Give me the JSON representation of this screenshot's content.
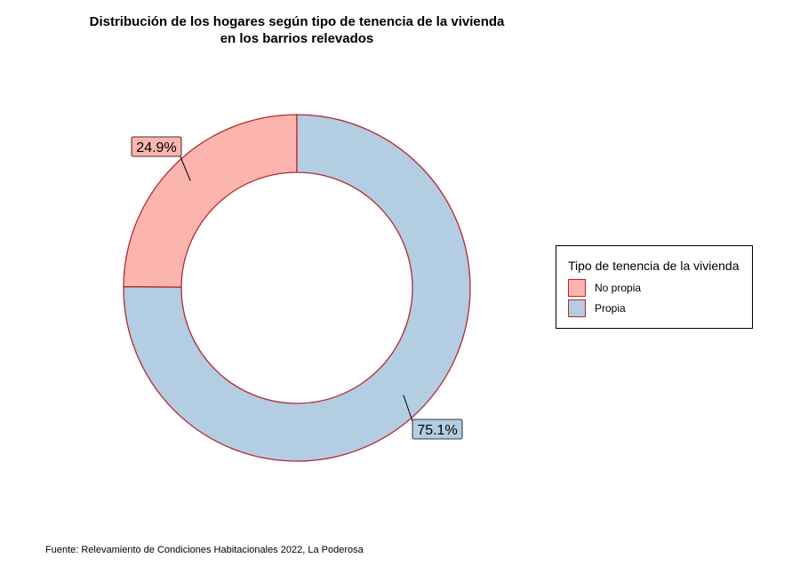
{
  "chart_data": {
    "type": "pie",
    "title_line1": "Distribución de los hogares según tipo de tenencia de la vivienda",
    "title_line2": "en los barrios relevados",
    "categories": [
      "No propia",
      "Propia"
    ],
    "values": [
      24.9,
      75.1
    ],
    "labels": [
      "24.9%",
      "75.1%"
    ],
    "colors": [
      "#fbb4ae",
      "#b3cde3"
    ],
    "border_color": "#b22a2e",
    "legend": {
      "title": "Tipo de tenencia de la vivienda",
      "position": "right",
      "items": [
        {
          "label": "No propia",
          "color": "#fbb4ae"
        },
        {
          "label": "Propia",
          "color": "#b3cde3"
        }
      ]
    },
    "caption": "Fuente: Relevamiento de Condiciones Habitacionales 2022, La Poderosa"
  }
}
